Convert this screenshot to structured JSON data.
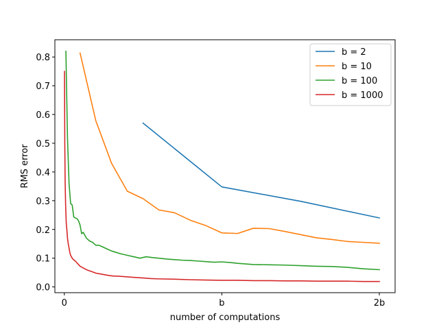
{
  "chart_data": {
    "type": "line",
    "title": "",
    "xlabel": "number of computations",
    "ylabel": "RMS error",
    "xlim": [
      -0.06,
      2.1
    ],
    "ylim": [
      -0.02,
      0.86
    ],
    "x_ticks": [
      {
        "value": 0,
        "label": "0"
      },
      {
        "value": 1,
        "label": "b"
      },
      {
        "value": 2,
        "label": "2b"
      }
    ],
    "y_ticks": [
      {
        "value": 0.0,
        "label": "0.0"
      },
      {
        "value": 0.1,
        "label": "0.1"
      },
      {
        "value": 0.2,
        "label": "0.2"
      },
      {
        "value": 0.3,
        "label": "0.3"
      },
      {
        "value": 0.4,
        "label": "0.4"
      },
      {
        "value": 0.5,
        "label": "0.5"
      },
      {
        "value": 0.6,
        "label": "0.6"
      },
      {
        "value": 0.7,
        "label": "0.7"
      },
      {
        "value": 0.8,
        "label": "0.8"
      }
    ],
    "grid": false,
    "legend_position": "top-right",
    "series": [
      {
        "name": "b = 2",
        "color": "#1f77b4",
        "x": [
          0.5,
          1.0,
          1.5,
          2.0
        ],
        "y": [
          0.57,
          0.348,
          0.298,
          0.24
        ]
      },
      {
        "name": "b = 10",
        "color": "#ff7f0e",
        "x": [
          0.1,
          0.2,
          0.3,
          0.4,
          0.5,
          0.6,
          0.7,
          0.8,
          0.9,
          1.0,
          1.1,
          1.2,
          1.3,
          1.4,
          1.5,
          1.6,
          1.7,
          1.8,
          1.9,
          2.0
        ],
        "y": [
          0.814,
          0.578,
          0.43,
          0.333,
          0.307,
          0.268,
          0.258,
          0.232,
          0.213,
          0.188,
          0.186,
          0.204,
          0.203,
          0.193,
          0.182,
          0.171,
          0.165,
          0.158,
          0.155,
          0.152
        ]
      },
      {
        "name": "b = 100",
        "color": "#2ca02c",
        "x": [
          0.01,
          0.02,
          0.03,
          0.04,
          0.05,
          0.06,
          0.07,
          0.08,
          0.09,
          0.1,
          0.11,
          0.12,
          0.13,
          0.14,
          0.15,
          0.16,
          0.18,
          0.2,
          0.22,
          0.24,
          0.26,
          0.28,
          0.3,
          0.33,
          0.36,
          0.4,
          0.44,
          0.48,
          0.52,
          0.56,
          0.6,
          0.65,
          0.7,
          0.75,
          0.8,
          0.85,
          0.9,
          0.95,
          1.0,
          1.05,
          1.1,
          1.2,
          1.3,
          1.4,
          1.5,
          1.6,
          1.7,
          1.8,
          1.9,
          2.0
        ],
        "y": [
          0.82,
          0.52,
          0.36,
          0.29,
          0.285,
          0.243,
          0.24,
          0.238,
          0.23,
          0.215,
          0.185,
          0.19,
          0.18,
          0.17,
          0.165,
          0.16,
          0.155,
          0.145,
          0.145,
          0.14,
          0.135,
          0.13,
          0.125,
          0.12,
          0.115,
          0.11,
          0.105,
          0.1,
          0.105,
          0.102,
          0.1,
          0.097,
          0.095,
          0.093,
          0.092,
          0.09,
          0.088,
          0.086,
          0.087,
          0.085,
          0.082,
          0.078,
          0.077,
          0.076,
          0.074,
          0.072,
          0.071,
          0.068,
          0.063,
          0.06
        ]
      },
      {
        "name": "b = 1000",
        "color": "#d62728",
        "x": [
          0.001,
          0.003,
          0.005,
          0.008,
          0.012,
          0.016,
          0.02,
          0.025,
          0.03,
          0.035,
          0.04,
          0.05,
          0.06,
          0.07,
          0.08,
          0.09,
          0.1,
          0.12,
          0.14,
          0.16,
          0.18,
          0.2,
          0.22,
          0.25,
          0.28,
          0.31,
          0.35,
          0.4,
          0.45,
          0.5,
          0.55,
          0.6,
          0.7,
          0.8,
          0.9,
          1.0,
          1.1,
          1.2,
          1.3,
          1.4,
          1.5,
          1.6,
          1.7,
          1.8,
          1.9,
          2.0
        ],
        "y": [
          0.75,
          0.5,
          0.37,
          0.29,
          0.225,
          0.2,
          0.17,
          0.15,
          0.135,
          0.12,
          0.11,
          0.1,
          0.094,
          0.09,
          0.084,
          0.078,
          0.072,
          0.066,
          0.06,
          0.056,
          0.052,
          0.048,
          0.046,
          0.043,
          0.04,
          0.038,
          0.037,
          0.035,
          0.033,
          0.031,
          0.029,
          0.028,
          0.027,
          0.025,
          0.024,
          0.023,
          0.023,
          0.022,
          0.022,
          0.021,
          0.021,
          0.02,
          0.02,
          0.02,
          0.019,
          0.019
        ]
      }
    ]
  }
}
